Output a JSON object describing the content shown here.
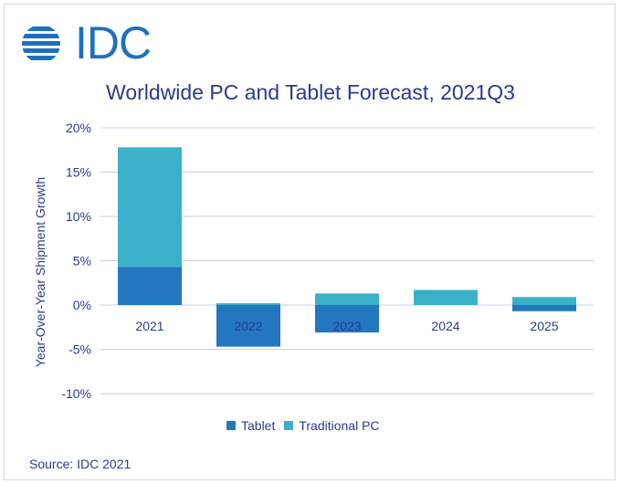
{
  "logo": {
    "text": "IDC"
  },
  "chart_data": {
    "type": "bar",
    "stacked": true,
    "title": "Worldwide PC and Tablet Forecast, 2021Q3",
    "xlabel": "",
    "ylabel": "Year-Over-Year  Shipment Growth",
    "categories": [
      "2021",
      "2022",
      "2023",
      "2024",
      "2025"
    ],
    "series": [
      {
        "name": "Tablet",
        "color": "#2277c0",
        "values": [
          4.3,
          -4.7,
          -3.1,
          0.0,
          -0.7
        ]
      },
      {
        "name": "Traditional PC",
        "color": "#3bb0c9",
        "values": [
          13.5,
          0.2,
          1.3,
          1.7,
          0.9
        ]
      }
    ],
    "ylim": [
      -10,
      20
    ],
    "yticks": [
      20,
      15,
      10,
      5,
      0,
      -5,
      -10
    ],
    "ytick_labels": [
      "20%",
      "15%",
      "10%",
      "5%",
      "0%",
      "-5%",
      "-10%"
    ],
    "grid": true,
    "legend_position": "bottom"
  },
  "source": "Source: IDC 2021"
}
